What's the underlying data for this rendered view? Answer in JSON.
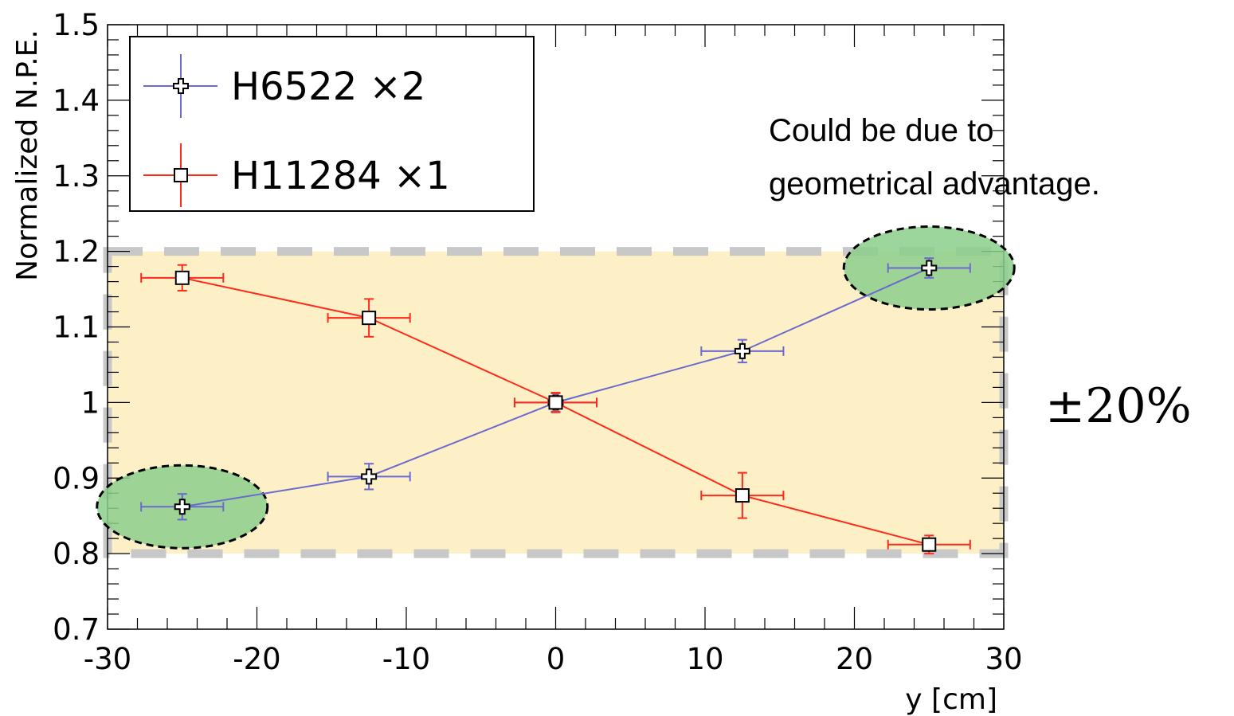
{
  "chart_data": {
    "type": "scatter",
    "xlabel": "y [cm]",
    "ylabel": "Normalized N.P.E.",
    "xlim": [
      -30,
      30
    ],
    "ylim": [
      0.7,
      1.5
    ],
    "x_ticks": [
      "-30",
      "-20",
      "-10",
      "0",
      "10",
      "20",
      "30"
    ],
    "y_ticks": [
      "0.7",
      "0.8",
      "0.9",
      "1",
      "1.1",
      "1.2",
      "1.3",
      "1.4",
      "1.5"
    ],
    "legend_position": "top-left",
    "series": [
      {
        "name": "H6522 ×2",
        "color": "#6a6ad0",
        "marker": "cross",
        "points": [
          {
            "x": -25,
            "y": 0.862,
            "xerr": 2.75,
            "yerr": 0.017
          },
          {
            "x": -12.5,
            "y": 0.902,
            "xerr": 2.75,
            "yerr": 0.017
          },
          {
            "x": 0,
            "y": 1.0,
            "xerr": 2.75,
            "yerr": 0.012
          },
          {
            "x": 12.5,
            "y": 1.068,
            "xerr": 2.75,
            "yerr": 0.015
          },
          {
            "x": 25,
            "y": 1.178,
            "xerr": 2.75,
            "yerr": 0.013
          }
        ]
      },
      {
        "name": "H11284 ×1",
        "color": "#ff2a1a",
        "marker": "open-square",
        "points": [
          {
            "x": -25,
            "y": 1.165,
            "xerr": 2.75,
            "yerr": 0.017
          },
          {
            "x": -12.5,
            "y": 1.112,
            "xerr": 2.75,
            "yerr": 0.025
          },
          {
            "x": 0,
            "y": 1.0,
            "xerr": 2.75,
            "yerr": 0.013
          },
          {
            "x": 12.5,
            "y": 0.877,
            "xerr": 2.75,
            "yerr": 0.03
          },
          {
            "x": 25,
            "y": 0.812,
            "xerr": 2.75,
            "yerr": 0.012
          }
        ]
      }
    ],
    "band": {
      "y_low": 0.8,
      "y_high": 1.2,
      "label": "±20%",
      "fill": "#fdefc6",
      "border": "#c8c8c8"
    },
    "highlights": [
      {
        "x": -25,
        "y": 0.862,
        "fill": "#8ccf8c"
      },
      {
        "x": 25,
        "y": 1.178,
        "fill": "#8ccf8c"
      }
    ],
    "annotation": {
      "lines": [
        "Could be due to",
        "geometrical advantage."
      ]
    }
  }
}
